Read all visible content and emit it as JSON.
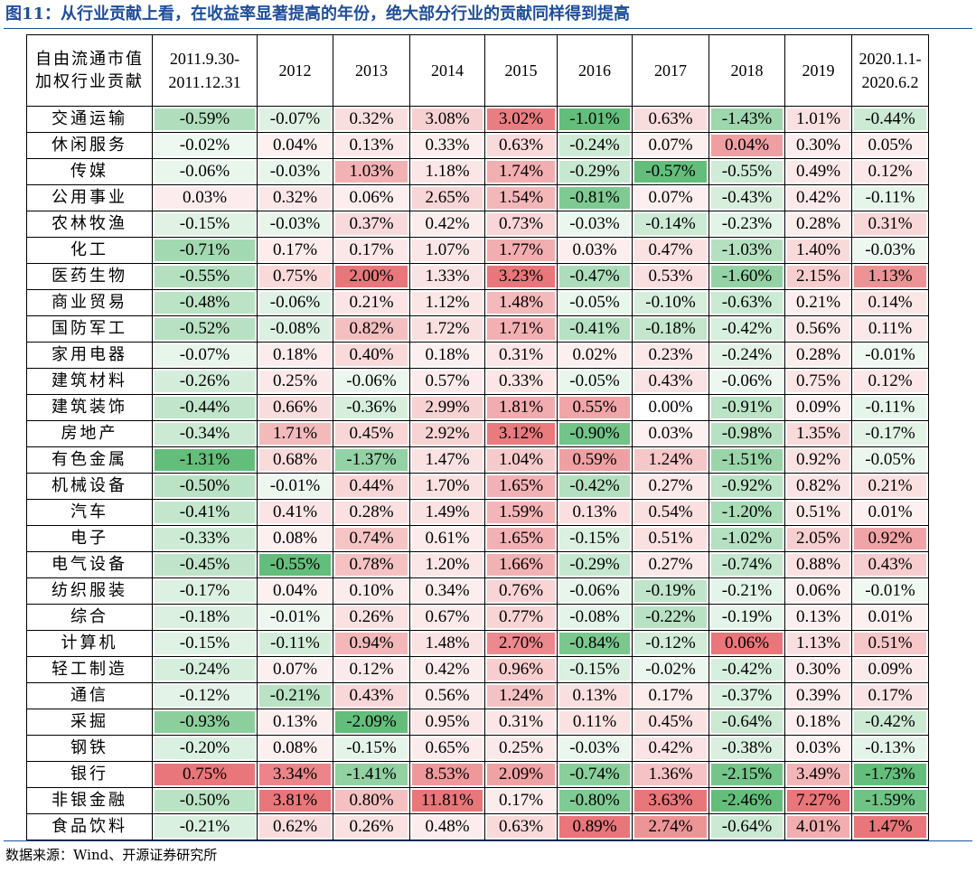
{
  "title": "图11：从行业贡献上看，在收益率显著提高的年份，绝大部分行业的贡献同样得到提高",
  "source": "数据来源：Wind、开源证券研究所",
  "colors": {
    "title": "#1f4e9a",
    "positive": "#e8767a",
    "negative": "#63be7b"
  },
  "table": {
    "header": [
      "自由流通市值加权行业贡献",
      "2011.9.30-2011.12.31",
      "2012",
      "2013",
      "2014",
      "2015",
      "2016",
      "2017",
      "2018",
      "2019",
      "2020.1.1-2020.6.2"
    ],
    "rows": [
      [
        "交通运输",
        "-0.59%",
        "-0.07%",
        "0.32%",
        "3.08%",
        "3.02%",
        "-1.01%",
        "0.63%",
        "-1.43%",
        "1.01%",
        "-0.44%"
      ],
      [
        "休闲服务",
        "-0.02%",
        "0.04%",
        "0.13%",
        "0.33%",
        "0.63%",
        "-0.24%",
        "0.07%",
        "0.04%",
        "0.30%",
        "0.05%"
      ],
      [
        "传媒",
        "-0.06%",
        "-0.03%",
        "1.03%",
        "1.18%",
        "1.74%",
        "-0.29%",
        "-0.57%",
        "-0.55%",
        "0.49%",
        "0.12%"
      ],
      [
        "公用事业",
        "0.03%",
        "0.32%",
        "0.06%",
        "2.65%",
        "1.54%",
        "-0.81%",
        "0.07%",
        "-0.43%",
        "0.42%",
        "-0.11%"
      ],
      [
        "农林牧渔",
        "-0.15%",
        "-0.03%",
        "0.37%",
        "0.42%",
        "0.73%",
        "-0.03%",
        "-0.14%",
        "-0.23%",
        "0.28%",
        "0.31%"
      ],
      [
        "化工",
        "-0.71%",
        "0.17%",
        "0.17%",
        "1.07%",
        "1.77%",
        "0.03%",
        "0.47%",
        "-1.03%",
        "1.40%",
        "-0.03%"
      ],
      [
        "医药生物",
        "-0.55%",
        "0.75%",
        "2.00%",
        "1.33%",
        "3.23%",
        "-0.47%",
        "0.53%",
        "-1.60%",
        "2.15%",
        "1.13%"
      ],
      [
        "商业贸易",
        "-0.48%",
        "-0.06%",
        "0.21%",
        "1.12%",
        "1.48%",
        "-0.05%",
        "-0.10%",
        "-0.63%",
        "0.21%",
        "0.14%"
      ],
      [
        "国防军工",
        "-0.52%",
        "-0.08%",
        "0.82%",
        "1.72%",
        "1.71%",
        "-0.41%",
        "-0.18%",
        "-0.42%",
        "0.56%",
        "0.11%"
      ],
      [
        "家用电器",
        "-0.07%",
        "0.18%",
        "0.40%",
        "0.18%",
        "0.31%",
        "0.02%",
        "0.23%",
        "-0.24%",
        "0.28%",
        "-0.01%"
      ],
      [
        "建筑材料",
        "-0.26%",
        "0.25%",
        "-0.06%",
        "0.57%",
        "0.33%",
        "-0.05%",
        "0.43%",
        "-0.06%",
        "0.75%",
        "0.12%"
      ],
      [
        "建筑装饰",
        "-0.44%",
        "0.66%",
        "-0.36%",
        "2.99%",
        "1.81%",
        "0.55%",
        "0.00%",
        "-0.91%",
        "0.09%",
        "-0.11%"
      ],
      [
        "房地产",
        "-0.34%",
        "1.71%",
        "0.45%",
        "2.92%",
        "3.12%",
        "-0.90%",
        "0.03%",
        "-0.98%",
        "1.35%",
        "-0.17%"
      ],
      [
        "有色金属",
        "-1.31%",
        "0.68%",
        "-1.37%",
        "1.47%",
        "1.04%",
        "0.59%",
        "1.24%",
        "-1.51%",
        "0.92%",
        "-0.05%"
      ],
      [
        "机械设备",
        "-0.50%",
        "-0.01%",
        "0.44%",
        "1.70%",
        "1.65%",
        "-0.42%",
        "0.27%",
        "-0.92%",
        "0.82%",
        "0.21%"
      ],
      [
        "汽车",
        "-0.41%",
        "0.41%",
        "0.28%",
        "1.49%",
        "1.59%",
        "0.13%",
        "0.54%",
        "-1.20%",
        "0.51%",
        "0.01%"
      ],
      [
        "电子",
        "-0.33%",
        "0.08%",
        "0.74%",
        "0.61%",
        "1.65%",
        "-0.15%",
        "0.51%",
        "-1.02%",
        "2.05%",
        "0.92%"
      ],
      [
        "电气设备",
        "-0.45%",
        "-0.55%",
        "0.78%",
        "1.20%",
        "1.66%",
        "-0.29%",
        "0.27%",
        "-0.74%",
        "0.88%",
        "0.43%"
      ],
      [
        "纺织服装",
        "-0.17%",
        "0.04%",
        "0.10%",
        "0.34%",
        "0.76%",
        "-0.06%",
        "-0.19%",
        "-0.21%",
        "0.06%",
        "-0.01%"
      ],
      [
        "综合",
        "-0.18%",
        "-0.01%",
        "0.26%",
        "0.67%",
        "0.77%",
        "-0.08%",
        "-0.22%",
        "-0.19%",
        "0.13%",
        "0.01%"
      ],
      [
        "计算机",
        "-0.15%",
        "-0.11%",
        "0.94%",
        "1.48%",
        "2.70%",
        "-0.84%",
        "-0.12%",
        "0.06%",
        "1.13%",
        "0.51%"
      ],
      [
        "轻工制造",
        "-0.24%",
        "0.07%",
        "0.12%",
        "0.42%",
        "0.96%",
        "-0.15%",
        "-0.02%",
        "-0.42%",
        "0.30%",
        "0.09%"
      ],
      [
        "通信",
        "-0.12%",
        "-0.21%",
        "0.43%",
        "0.56%",
        "1.24%",
        "0.13%",
        "0.17%",
        "-0.37%",
        "0.39%",
        "0.17%"
      ],
      [
        "采掘",
        "-0.93%",
        "0.13%",
        "-2.09%",
        "0.95%",
        "0.31%",
        "0.11%",
        "0.45%",
        "-0.64%",
        "0.18%",
        "-0.42%"
      ],
      [
        "钢铁",
        "-0.20%",
        "0.08%",
        "-0.15%",
        "0.65%",
        "0.25%",
        "-0.03%",
        "0.42%",
        "-0.38%",
        "0.03%",
        "-0.13%"
      ],
      [
        "银行",
        "0.75%",
        "3.34%",
        "-1.41%",
        "8.53%",
        "2.09%",
        "-0.74%",
        "1.36%",
        "-2.15%",
        "3.49%",
        "-1.73%"
      ],
      [
        "非银金融",
        "-0.50%",
        "3.81%",
        "0.80%",
        "11.81%",
        "0.17%",
        "-0.80%",
        "3.63%",
        "-2.46%",
        "7.27%",
        "-1.59%"
      ],
      [
        "食品饮料",
        "-0.21%",
        "0.62%",
        "0.26%",
        "0.48%",
        "0.63%",
        "0.89%",
        "2.74%",
        "-0.64%",
        "4.01%",
        "1.47%"
      ]
    ]
  }
}
